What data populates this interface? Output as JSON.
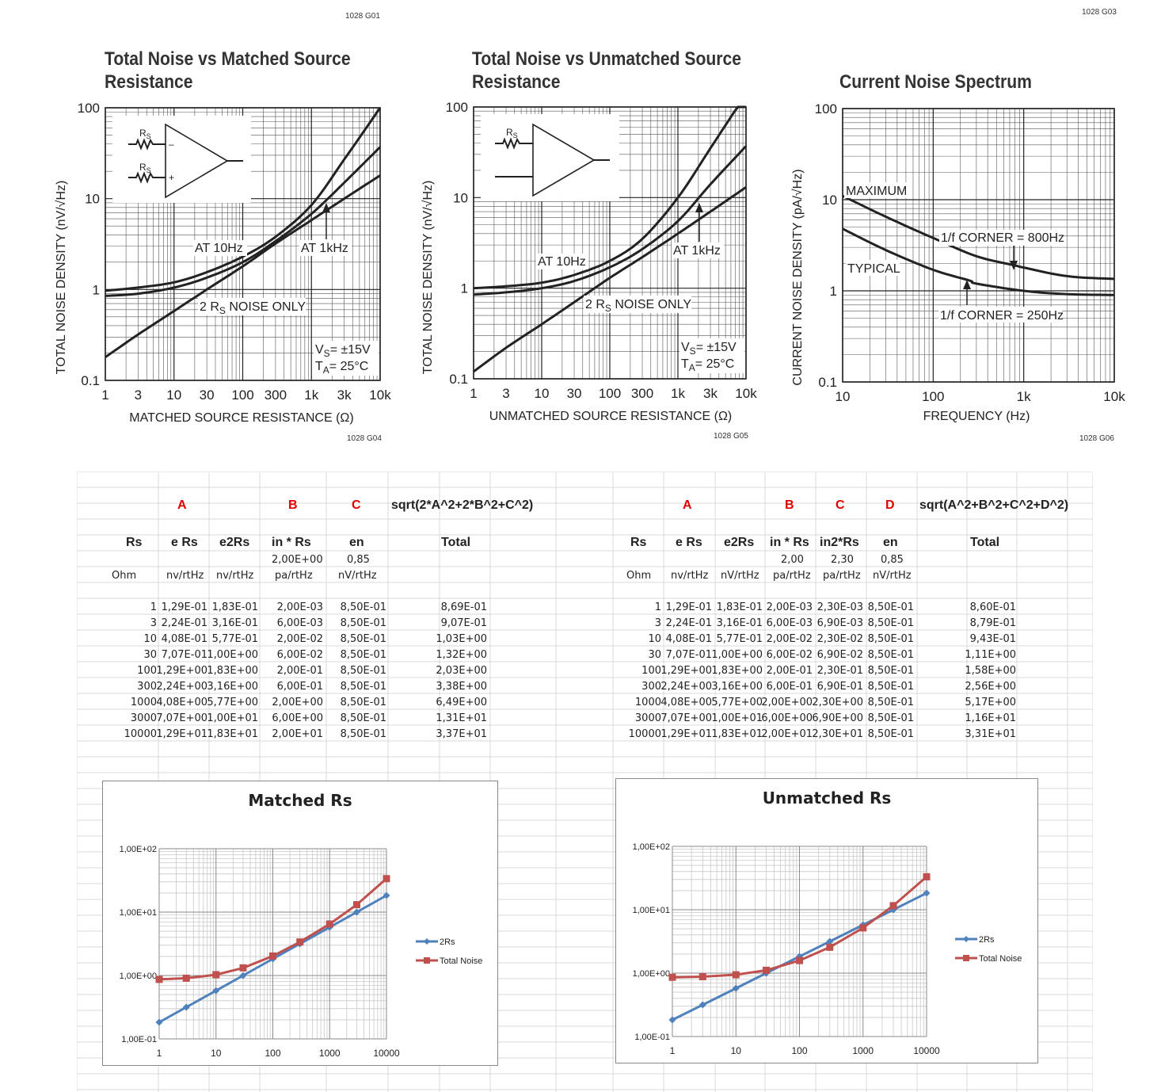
{
  "codes": {
    "top_left": "1028 G01",
    "top_right": "1028 G03",
    "g04": "1028 G04",
    "g05": "1028 G05",
    "g06": "1028 G06"
  },
  "ds_charts": [
    {
      "title_line1": "Total Noise vs Matched Source",
      "title_line2": "Resistance",
      "ylabel": "TOTAL NOISE DENSITY (nV/√Hz)",
      "xlabel": "MATCHED SOURCE RESISTANCE (Ω)",
      "yticks": [
        "100",
        "10",
        "1",
        "0.1"
      ],
      "xticks": [
        "1",
        "3",
        "10",
        "30",
        "100",
        "300",
        "1k",
        "3k",
        "10k"
      ],
      "ann": {
        "at10": "AT 10Hz",
        "at1k": "AT 1kHz",
        "rs_pre": "2 R",
        "rs_sub": "S",
        "rs_post": " NOISE ONLY",
        "vs": "= ±15V",
        "ta": "= 25°C",
        "v": "V",
        "vsub": "S",
        "t": "T",
        "tsub": "A",
        "rs1": "R",
        "rs1sub": "S",
        "minus": "–",
        "plus": "+"
      }
    },
    {
      "title_line1": "Total Noise vs Unmatched Source",
      "title_line2": "Resistance",
      "ylabel": "TOTAL NOISE DENSITY (nV/√Hz)",
      "xlabel": "UNMATCHED SOURCE RESISTANCE (Ω)",
      "yticks": [
        "100",
        "10",
        "1",
        "0.1"
      ],
      "xticks": [
        "1",
        "3",
        "10",
        "30",
        "100",
        "300",
        "1k",
        "3k",
        "10k"
      ],
      "ann": {
        "at10": "AT 10Hz",
        "at1k": "AT 1kHz",
        "rs_pre": "2 R",
        "rs_sub": "S",
        "rs_post": " NOISE ONLY",
        "vs": "= ±15V",
        "ta": "= 25°C",
        "v": "V",
        "vsub": "S",
        "t": "T",
        "tsub": "A",
        "rs1": "R",
        "rs1sub": "S"
      }
    },
    {
      "title_line1": "Current Noise Spectrum",
      "ylabel": "CURRENT NOISE DENSITY (pA/√Hz)",
      "xlabel": "FREQUENCY (Hz)",
      "yticks": [
        "100",
        "10",
        "1",
        "0.1"
      ],
      "xticks": [
        "10",
        "100",
        "1k",
        "10k"
      ],
      "ann": {
        "max": "MAXIMUM",
        "typ": "TYPICAL",
        "c800": "1/f CORNER = 800Hz",
        "c250": "1/f CORNER = 250Hz"
      }
    }
  ],
  "left_table": {
    "letters": [
      "A",
      "B",
      "C"
    ],
    "formula": "sqrt(2*A^2+2*B^2+C^2)",
    "headers": [
      "Rs",
      "e Rs",
      "e2Rs",
      "in * Rs",
      "en",
      "Total"
    ],
    "params": [
      "2,00E+00",
      "0,85"
    ],
    "units": [
      "Ohm",
      "nv/rtHz",
      "nv/rtHz",
      "pa/rtHz",
      "nV/rtHz"
    ],
    "rows": [
      [
        "1",
        "1,29E-01",
        "1,83E-01",
        "2,00E-03",
        "8,50E-01",
        "8,69E-01"
      ],
      [
        "3",
        "2,24E-01",
        "3,16E-01",
        "6,00E-03",
        "8,50E-01",
        "9,07E-01"
      ],
      [
        "10",
        "4,08E-01",
        "5,77E-01",
        "2,00E-02",
        "8,50E-01",
        "1,03E+00"
      ],
      [
        "30",
        "7,07E-01",
        "1,00E+00",
        "6,00E-02",
        "8,50E-01",
        "1,32E+00"
      ],
      [
        "100",
        "1,29E+00",
        "1,83E+00",
        "2,00E-01",
        "8,50E-01",
        "2,03E+00"
      ],
      [
        "300",
        "2,24E+00",
        "3,16E+00",
        "6,00E-01",
        "8,50E-01",
        "3,38E+00"
      ],
      [
        "1000",
        "4,08E+00",
        "5,77E+00",
        "2,00E+00",
        "8,50E-01",
        "6,49E+00"
      ],
      [
        "3000",
        "7,07E+00",
        "1,00E+01",
        "6,00E+00",
        "8,50E-01",
        "1,31E+01"
      ],
      [
        "10000",
        "1,29E+01",
        "1,83E+01",
        "2,00E+01",
        "8,50E-01",
        "3,37E+01"
      ]
    ]
  },
  "right_table": {
    "letters": [
      "A",
      "B",
      "C",
      "D"
    ],
    "formula": "sqrt(A^2+B^2+C^2+D^2)",
    "headers": [
      "Rs",
      "e Rs",
      "e2Rs",
      "in * Rs",
      "in2*Rs",
      "en",
      "Total"
    ],
    "params": [
      "2,00",
      "2,30",
      "0,85"
    ],
    "units": [
      "Ohm",
      "nv/rtHz",
      "nV/rtHz",
      "pa/rtHz",
      "pa/rtHz",
      "nV/rtHz"
    ],
    "rows": [
      [
        "1",
        "1,29E-01",
        "1,83E-01",
        "2,00E-03",
        "2,30E-03",
        "8,50E-01",
        "8,60E-01"
      ],
      [
        "3",
        "2,24E-01",
        "3,16E-01",
        "6,00E-03",
        "6,90E-03",
        "8,50E-01",
        "8,79E-01"
      ],
      [
        "10",
        "4,08E-01",
        "5,77E-01",
        "2,00E-02",
        "2,30E-02",
        "8,50E-01",
        "9,43E-01"
      ],
      [
        "30",
        "7,07E-01",
        "1,00E+00",
        "6,00E-02",
        "6,90E-02",
        "8,50E-01",
        "1,11E+00"
      ],
      [
        "100",
        "1,29E+00",
        "1,83E+00",
        "2,00E-01",
        "2,30E-01",
        "8,50E-01",
        "1,58E+00"
      ],
      [
        "300",
        "2,24E+00",
        "3,16E+00",
        "6,00E-01",
        "6,90E-01",
        "8,50E-01",
        "2,56E+00"
      ],
      [
        "1000",
        "4,08E+00",
        "5,77E+00",
        "2,00E+00",
        "2,30E+00",
        "8,50E-01",
        "5,17E+00"
      ],
      [
        "3000",
        "7,07E+00",
        "1,00E+01",
        "6,00E+00",
        "6,90E+00",
        "8,50E-01",
        "1,16E+01"
      ],
      [
        "10000",
        "1,29E+01",
        "1,83E+01",
        "2,00E+01",
        "2,30E+01",
        "8,50E-01",
        "3,31E+01"
      ]
    ]
  },
  "chart_data": [
    {
      "type": "line",
      "title": "Total Noise vs Matched Source Resistance",
      "xlabel": "MATCHED SOURCE RESISTANCE (Ω)",
      "ylabel": "TOTAL NOISE DENSITY (nV/√Hz)",
      "xscale": "log",
      "yscale": "log",
      "xlim": [
        1,
        10000
      ],
      "ylim": [
        0.1,
        100
      ],
      "series": [
        {
          "name": "AT 10Hz",
          "x": [
            1,
            3,
            10,
            30,
            100,
            300,
            1000,
            3000,
            10000
          ],
          "y": [
            0.97,
            1.05,
            1.2,
            1.55,
            2.3,
            3.8,
            8.5,
            27,
            100
          ]
        },
        {
          "name": "AT 1kHz",
          "x": [
            1,
            3,
            10,
            30,
            100,
            300,
            1000,
            3000,
            10000
          ],
          "y": [
            0.85,
            0.9,
            1.05,
            1.35,
            2.0,
            3.4,
            6.8,
            15,
            37
          ]
        },
        {
          "name": "2 RS NOISE ONLY",
          "x": [
            1,
            3,
            10,
            30,
            100,
            300,
            1000,
            3000,
            10000
          ],
          "y": [
            0.18,
            0.32,
            0.58,
            1.0,
            1.8,
            3.2,
            5.8,
            10,
            18
          ]
        }
      ]
    },
    {
      "type": "line",
      "title": "Total Noise vs Unmatched Source Resistance",
      "xlabel": "UNMATCHED SOURCE RESISTANCE (Ω)",
      "ylabel": "TOTAL NOISE DENSITY (nV/√Hz)",
      "xscale": "log",
      "yscale": "log",
      "xlim": [
        1,
        10000
      ],
      "ylim": [
        0.1,
        100
      ],
      "series": [
        {
          "name": "AT 10Hz",
          "x": [
            1,
            3,
            10,
            30,
            100,
            300,
            1000,
            3000,
            10000
          ],
          "y": [
            1.0,
            1.05,
            1.15,
            1.4,
            2.0,
            3.5,
            10,
            35,
            140
          ]
        },
        {
          "name": "AT 1kHz",
          "x": [
            1,
            3,
            10,
            30,
            100,
            300,
            1000,
            3000,
            10000
          ],
          "y": [
            0.85,
            0.9,
            1.0,
            1.2,
            1.7,
            2.7,
            5.5,
            14,
            37
          ]
        },
        {
          "name": "2 RS NOISE ONLY",
          "x": [
            1,
            3,
            10,
            30,
            100,
            300,
            1000,
            3000,
            10000
          ],
          "y": [
            0.12,
            0.22,
            0.4,
            0.7,
            1.3,
            2.2,
            4.0,
            7.0,
            13
          ]
        }
      ]
    },
    {
      "type": "line",
      "title": "Current Noise Spectrum",
      "xlabel": "FREQUENCY (Hz)",
      "ylabel": "CURRENT NOISE DENSITY (pA/√Hz)",
      "xscale": "log",
      "yscale": "log",
      "xlim": [
        10,
        10000
      ],
      "ylim": [
        0.1,
        100
      ],
      "series": [
        {
          "name": "MAXIMUM",
          "x": [
            10,
            30,
            100,
            300,
            800,
            1000,
            3000,
            10000
          ],
          "y": [
            11,
            6.5,
            3.8,
            2.4,
            1.9,
            1.8,
            1.45,
            1.35
          ]
        },
        {
          "name": "TYPICAL",
          "x": [
            10,
            30,
            100,
            250,
            300,
            1000,
            3000,
            10000
          ],
          "y": [
            4.8,
            2.8,
            1.7,
            1.3,
            1.2,
            1.0,
            0.92,
            0.9
          ]
        }
      ]
    },
    {
      "type": "line",
      "title": "Matched Rs",
      "xscale": "log",
      "yscale": "log",
      "xlim": [
        1,
        10000
      ],
      "ylim": [
        0.1,
        100
      ],
      "xticks": [
        "1",
        "10",
        "100",
        "1000",
        "10000"
      ],
      "yticks": [
        "1,00E+02",
        "1,00E+01",
        "1,00E+00",
        "1,00E-01"
      ],
      "legend": "right",
      "series": [
        {
          "name": "2Rs",
          "color": "#4f81bd",
          "x": [
            1,
            3,
            10,
            30,
            100,
            300,
            1000,
            3000,
            10000
          ],
          "y": [
            0.183,
            0.316,
            0.577,
            1.0,
            1.83,
            3.16,
            5.77,
            10,
            18.3
          ]
        },
        {
          "name": "Total Noise",
          "color": "#c0504d",
          "x": [
            1,
            3,
            10,
            30,
            100,
            300,
            1000,
            3000,
            10000
          ],
          "y": [
            0.869,
            0.907,
            1.03,
            1.32,
            2.03,
            3.38,
            6.49,
            13.1,
            33.7
          ]
        }
      ]
    },
    {
      "type": "line",
      "title": "Unmatched Rs",
      "xscale": "log",
      "yscale": "log",
      "xlim": [
        1,
        10000
      ],
      "ylim": [
        0.1,
        100
      ],
      "xticks": [
        "1",
        "10",
        "100",
        "1000",
        "10000"
      ],
      "yticks": [
        "1,00E+02",
        "1,00E+01",
        "1,00E+00",
        "1,00E-01"
      ],
      "legend": "right",
      "series": [
        {
          "name": "2Rs",
          "color": "#4f81bd",
          "x": [
            1,
            3,
            10,
            30,
            100,
            300,
            1000,
            3000,
            10000
          ],
          "y": [
            0.183,
            0.316,
            0.577,
            1.0,
            1.83,
            3.16,
            5.77,
            10,
            18.3
          ]
        },
        {
          "name": "Total Noise",
          "color": "#c0504d",
          "x": [
            1,
            3,
            10,
            30,
            100,
            300,
            1000,
            3000,
            10000
          ],
          "y": [
            0.86,
            0.879,
            0.943,
            1.11,
            1.58,
            2.56,
            5.17,
            11.6,
            33.1
          ]
        }
      ]
    }
  ]
}
